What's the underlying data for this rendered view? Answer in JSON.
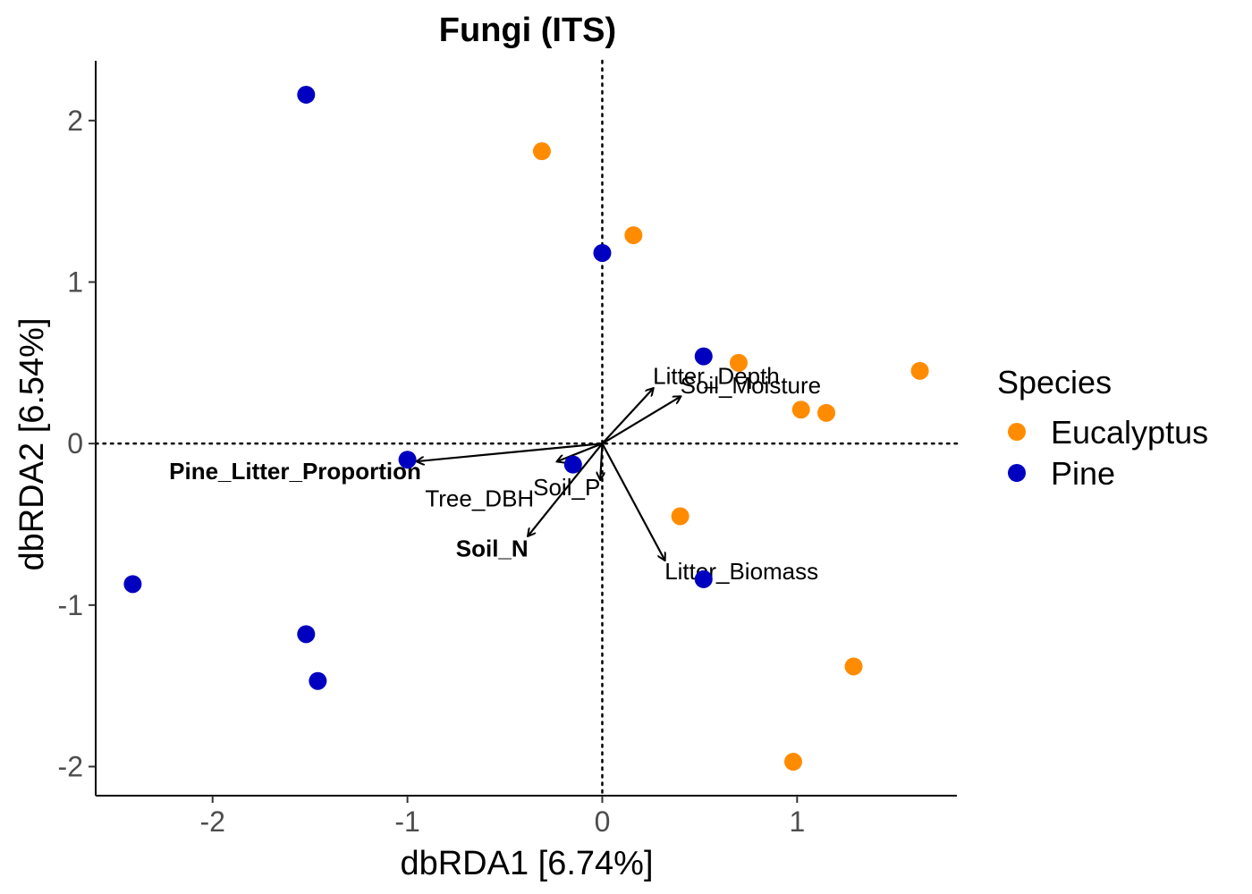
{
  "chart_data": {
    "type": "scatter",
    "title": "Fungi (ITS)",
    "xlabel": "dbRDA1 [6.74%]",
    "ylabel": "dbRDA2 [6.54%]",
    "xlim": [
      -2.6,
      1.82
    ],
    "ylim": [
      -2.18,
      2.37
    ],
    "x_ticks": [
      -2,
      -1,
      0,
      1
    ],
    "y_ticks": [
      -2,
      -1,
      0,
      1,
      2
    ],
    "x_tick_labels": [
      "-2",
      "-1",
      "0",
      "1"
    ],
    "y_tick_labels": [
      "-2",
      "-1",
      "0",
      "1",
      "2"
    ],
    "grid": false,
    "reference_lines": {
      "x": 0,
      "y": 0,
      "style": "dotted"
    },
    "legend": {
      "title": "Species",
      "position": "right",
      "entries": [
        {
          "label": "Eucalyptus",
          "color": "#FF8C00"
        },
        {
          "label": "Pine",
          "color": "#0000C0"
        }
      ]
    },
    "series": [
      {
        "name": "Eucalyptus",
        "color": "#FF8C00",
        "points": [
          {
            "x": -0.31,
            "y": 1.81
          },
          {
            "x": 0.16,
            "y": 1.29
          },
          {
            "x": 0.7,
            "y": 0.5
          },
          {
            "x": 1.63,
            "y": 0.45
          },
          {
            "x": 1.02,
            "y": 0.21
          },
          {
            "x": 1.15,
            "y": 0.19
          },
          {
            "x": 0.4,
            "y": -0.45
          },
          {
            "x": 1.29,
            "y": -1.38
          },
          {
            "x": 0.98,
            "y": -1.97
          }
        ]
      },
      {
        "name": "Pine",
        "color": "#0000C0",
        "points": [
          {
            "x": -1.52,
            "y": 2.16
          },
          {
            "x": 0.0,
            "y": 1.18
          },
          {
            "x": 0.52,
            "y": 0.54
          },
          {
            "x": -1.0,
            "y": -0.1
          },
          {
            "x": -0.15,
            "y": -0.13
          },
          {
            "x": 0.52,
            "y": -0.84
          },
          {
            "x": -2.41,
            "y": -0.87
          },
          {
            "x": -1.52,
            "y": -1.18
          },
          {
            "x": -1.46,
            "y": -1.47
          }
        ]
      }
    ],
    "vectors": [
      {
        "name": "Litter_Depth",
        "x": 0.26,
        "y": 0.34,
        "label_x": 0.26,
        "label_y": 0.37,
        "label_anchor": "start",
        "bold": false
      },
      {
        "name": "Soil_Moisture",
        "x": 0.4,
        "y": 0.29,
        "label_x": 0.4,
        "label_y": 0.31,
        "label_anchor": "start",
        "bold": false
      },
      {
        "name": "Pine_Litter_Proportion",
        "x": -0.95,
        "y": -0.11,
        "label_x": -0.93,
        "label_y": -0.22,
        "label_anchor": "end",
        "bold": true
      },
      {
        "name": "Tree_DBH",
        "x": -0.23,
        "y": -0.11,
        "label_x": -0.35,
        "label_y": -0.39,
        "label_anchor": "end",
        "bold": false
      },
      {
        "name": "Soil_P",
        "x": -0.01,
        "y": -0.22,
        "label_x": -0.01,
        "label_y": -0.32,
        "label_anchor": "end",
        "bold": false
      },
      {
        "name": "Soil_N",
        "x": -0.38,
        "y": -0.57,
        "label_x": -0.38,
        "label_y": -0.7,
        "label_anchor": "end",
        "bold": true
      },
      {
        "name": "Litter_Biomass",
        "x": 0.32,
        "y": -0.72,
        "label_x": 0.32,
        "label_y": -0.84,
        "label_anchor": "start",
        "bold": false
      }
    ]
  }
}
